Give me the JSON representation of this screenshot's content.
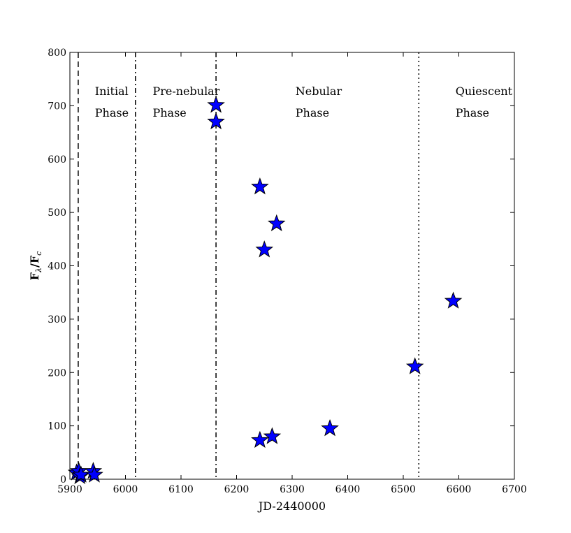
{
  "chart_data": {
    "type": "scatter",
    "title": "",
    "xlabel": "JD-2440000",
    "ylabel_main": "F",
    "ylabel_sub1": "λ",
    "ylabel_sep": "/F",
    "ylabel_sub2": "c",
    "xlim": [
      5900,
      6700
    ],
    "ylim": [
      0,
      800
    ],
    "xticks": [
      5900,
      6000,
      6100,
      6200,
      6300,
      6400,
      6500,
      6600,
      6700
    ],
    "yticks": [
      0,
      100,
      200,
      300,
      400,
      500,
      600,
      700,
      800
    ],
    "grid": false,
    "marker": "star",
    "marker_color": "#0000ff",
    "series": [
      {
        "points": [
          {
            "x": 5912,
            "y": 12
          },
          {
            "x": 5916,
            "y": 15
          },
          {
            "x": 5918,
            "y": 5
          },
          {
            "x": 5920,
            "y": 8
          },
          {
            "x": 5942,
            "y": 15
          },
          {
            "x": 5944,
            "y": 8
          },
          {
            "x": 6163,
            "y": 701
          },
          {
            "x": 6163,
            "y": 670
          },
          {
            "x": 6242,
            "y": 548
          },
          {
            "x": 6272,
            "y": 479
          },
          {
            "x": 6250,
            "y": 430
          },
          {
            "x": 6242,
            "y": 73
          },
          {
            "x": 6264,
            "y": 80
          },
          {
            "x": 6368,
            "y": 95
          },
          {
            "x": 6521,
            "y": 211
          },
          {
            "x": 6590,
            "y": 334
          }
        ]
      }
    ],
    "phase_lines": [
      {
        "x": 5915,
        "style": "dashed"
      },
      {
        "x": 6018,
        "style": "dashdot"
      },
      {
        "x": 6163,
        "style": "dashdot"
      },
      {
        "x": 6528,
        "style": "dotted"
      }
    ],
    "annotations": [
      {
        "line1": "Initial",
        "line2": "Phase",
        "x": 5945,
        "y": 720
      },
      {
        "line1": "Pre-nebular",
        "line2": "Phase",
        "x": 6049,
        "y": 720
      },
      {
        "line1": "Nebular",
        "line2": "Phase",
        "x": 6306,
        "y": 720
      },
      {
        "line1": "Quiescent",
        "line2": "Phase",
        "x": 6594,
        "y": 720
      }
    ]
  }
}
